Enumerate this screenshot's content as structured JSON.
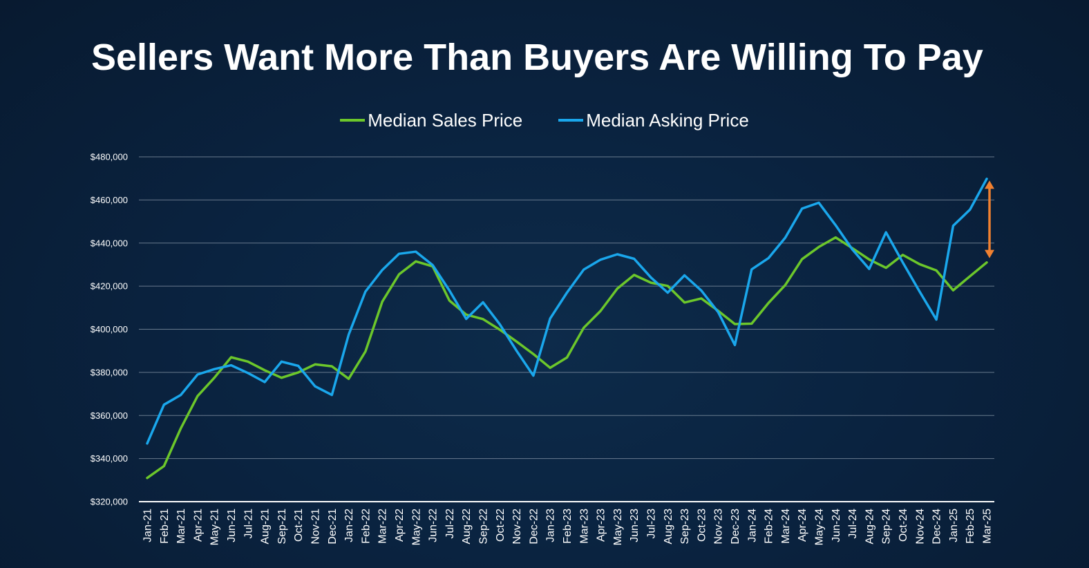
{
  "title": "Sellers Want More Than Buyers Are Willing To Pay",
  "colors": {
    "sales": "#6cc72b",
    "asking": "#1aa7ec",
    "arrow": "#f08030",
    "grid": "#8a98a8"
  },
  "chart_data": {
    "type": "line",
    "title": "Sellers Want More Than Buyers Are Willing To Pay",
    "xlabel": "",
    "ylabel": "",
    "ylim": [
      320000,
      480000
    ],
    "yticks": [
      320000,
      340000,
      360000,
      380000,
      400000,
      420000,
      440000,
      460000,
      480000
    ],
    "ytick_labels": [
      "$320,000",
      "$340,000",
      "$360,000",
      "$380,000",
      "$400,000",
      "$420,000",
      "$440,000",
      "$460,000",
      "$480,000"
    ],
    "grid": true,
    "legend_position": "top-center",
    "categories": [
      "Jan-21",
      "Feb-21",
      "Mar-21",
      "Apr-21",
      "May-21",
      "Jun-21",
      "Jul-21",
      "Aug-21",
      "Sep-21",
      "Oct-21",
      "Nov-21",
      "Dec-21",
      "Jan-22",
      "Feb-22",
      "Mar-22",
      "Apr-22",
      "May-22",
      "Jun-22",
      "Jul-22",
      "Aug-22",
      "Sep-22",
      "Oct-22",
      "Nov-22",
      "Dec-22",
      "Jan-23",
      "Feb-23",
      "Mar-23",
      "Apr-23",
      "May-23",
      "Jun-23",
      "Jul-23",
      "Aug-23",
      "Sep-23",
      "Oct-23",
      "Nov-23",
      "Dec-23",
      "Jan-24",
      "Feb-24",
      "Mar-24",
      "Apr-24",
      "May-24",
      "Jun-24",
      "Jul-24",
      "Aug-24",
      "Sep-24",
      "Oct-24",
      "Nov-24",
      "Dec-24",
      "Jan-25",
      "Feb-25",
      "Mar-25"
    ],
    "series": [
      {
        "name": "Median Sales Price",
        "values": [
          331000,
          336500,
          354000,
          369000,
          377500,
          387000,
          385000,
          381000,
          377500,
          380000,
          383700,
          382800,
          377000,
          389700,
          412800,
          425500,
          431500,
          429200,
          413300,
          406800,
          404700,
          399800,
          394300,
          388500,
          382100,
          386900,
          400700,
          408500,
          418900,
          425200,
          421600,
          420100,
          412400,
          414300,
          408600,
          402400,
          402600,
          412200,
          420500,
          432500,
          438200,
          442600,
          437600,
          432400,
          428500,
          434500,
          430200,
          427300,
          418100,
          424600,
          431000
        ]
      },
      {
        "name": "Median Asking Price",
        "values": [
          347000,
          365000,
          369500,
          379000,
          381500,
          383300,
          379700,
          375500,
          385000,
          383000,
          373500,
          369500,
          397500,
          417500,
          427500,
          435000,
          436000,
          429800,
          418000,
          404800,
          412500,
          402300,
          390000,
          378500,
          405000,
          417000,
          427700,
          432300,
          434800,
          432700,
          424000,
          417000,
          425000,
          418000,
          408000,
          392700,
          427800,
          433000,
          442500,
          456000,
          458700,
          448300,
          437000,
          428000,
          445000,
          431000,
          417500,
          404500,
          448000,
          455500,
          469800
        ]
      }
    ],
    "annotations": [
      {
        "type": "double-arrow",
        "x": "Mar-25",
        "from": 469000,
        "to": 433000
      }
    ]
  },
  "legend": [
    {
      "label": "Median Sales Price",
      "color": "#6cc72b"
    },
    {
      "label": "Median Asking Price",
      "color": "#1aa7ec"
    }
  ]
}
